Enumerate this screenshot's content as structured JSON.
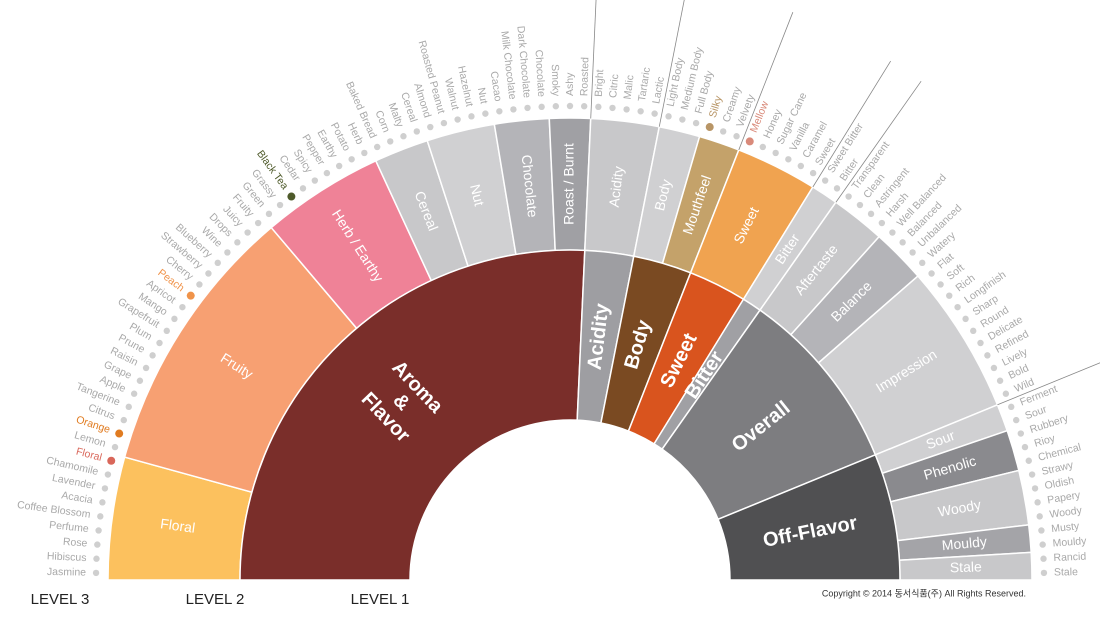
{
  "wheel": [
    {
      "label": "Aroma & Flavor",
      "color": "#7a2e2a",
      "children": [
        {
          "label": "Floral",
          "color": "#fcc15e",
          "children": [
            {
              "label": "Jasmine"
            },
            {
              "label": "Hibiscus"
            },
            {
              "label": "Rose"
            },
            {
              "label": "Perfume"
            },
            {
              "label": "Coffee Blossom"
            },
            {
              "label": "Acacia"
            },
            {
              "label": "Lavender"
            },
            {
              "label": "Chamomile"
            },
            {
              "label": "Floral",
              "color": "#d9675a"
            }
          ]
        },
        {
          "label": "Fruity",
          "color": "#f7a072",
          "children": [
            {
              "label": "Lemon"
            },
            {
              "label": "Orange",
              "color": "#e07b20"
            },
            {
              "label": "Citrus"
            },
            {
              "label": "Tangerine"
            },
            {
              "label": "Apple"
            },
            {
              "label": "Grape"
            },
            {
              "label": "Raisin"
            },
            {
              "label": "Prune"
            },
            {
              "label": "Plum"
            },
            {
              "label": "Grapefruit"
            },
            {
              "label": "Mango"
            },
            {
              "label": "Apricot"
            },
            {
              "label": "Peach",
              "color": "#f0934a"
            },
            {
              "label": "Cherry"
            },
            {
              "label": "Strawberry"
            },
            {
              "label": "Blueberry"
            },
            {
              "label": "Wine"
            },
            {
              "label": "Drops"
            },
            {
              "label": "Juicy"
            },
            {
              "label": "Fruity"
            }
          ]
        },
        {
          "label": "Herb / Earthy",
          "color": "#ef8297",
          "children": [
            {
              "label": "Green"
            },
            {
              "label": "Grassy"
            },
            {
              "label": "Black Tea",
              "color": "#4e5a2a"
            },
            {
              "label": "Cedar"
            },
            {
              "label": "Spicy"
            },
            {
              "label": "Pepper"
            },
            {
              "label": "Earthy"
            },
            {
              "label": "Potato"
            },
            {
              "label": "Herb"
            }
          ]
        },
        {
          "label": "Cereal",
          "color": "#c8c8ca",
          "children": [
            {
              "label": "Baked Bread"
            },
            {
              "label": "Corn"
            },
            {
              "label": "Malty"
            },
            {
              "label": "Cereal"
            }
          ]
        },
        {
          "label": "Nut",
          "color": "#d0d0d2",
          "children": [
            {
              "label": "Almond"
            },
            {
              "label": "Roasted Peanut"
            },
            {
              "label": "Walnut"
            },
            {
              "label": "Hazelnut"
            },
            {
              "label": "Nut"
            }
          ]
        },
        {
          "label": "Chocolate",
          "color": "#b4b4b8",
          "children": [
            {
              "label": "Cacao"
            },
            {
              "label": "Milk Chocolate"
            },
            {
              "label": "Dark Chocolate"
            },
            {
              "label": "Chocolate"
            }
          ]
        },
        {
          "label": "Roast / Burnt",
          "color": "#a0a0a4",
          "children": [
            {
              "label": "Smoky"
            },
            {
              "label": "Ashy"
            },
            {
              "label": "Roasted"
            }
          ]
        }
      ]
    },
    {
      "label": "Acidity",
      "color": "#9e9ea2",
      "children": [
        {
          "label": "Acidity",
          "color": "#c8c8ca",
          "children": [
            {
              "label": "Bright"
            },
            {
              "label": "Citric"
            },
            {
              "label": "Malic"
            },
            {
              "label": "Tartaric"
            },
            {
              "label": "Lactic"
            }
          ]
        }
      ]
    },
    {
      "label": "Body",
      "color": "#7a4a22",
      "children": [
        {
          "label": "Body",
          "color": "#d0d0d2",
          "children": [
            {
              "label": "Light Body"
            },
            {
              "label": "Medium Body"
            },
            {
              "label": "Full Body"
            }
          ]
        },
        {
          "label": "Mouthfeel",
          "color": "#c4a26a",
          "children": [
            {
              "label": "Silky",
              "color": "#b89566"
            },
            {
              "label": "Creamy"
            },
            {
              "label": "Velvety"
            }
          ]
        }
      ]
    },
    {
      "label": "Sweet",
      "color": "#d9541e",
      "children": [
        {
          "label": "Sweet",
          "color": "#f0a350",
          "children": [
            {
              "label": "Mellow",
              "color": "#d98a7a"
            },
            {
              "label": "Honey"
            },
            {
              "label": "Sugar Cane"
            },
            {
              "label": "Vanilla"
            },
            {
              "label": "Caramel"
            },
            {
              "label": "Sweet"
            }
          ]
        }
      ]
    },
    {
      "label": "Bitter",
      "color": "#a0a0a4",
      "children": [
        {
          "label": "Bitter",
          "color": "#d0d0d2",
          "children": [
            {
              "label": "Sweet Bitter"
            },
            {
              "label": "Bitter"
            }
          ]
        }
      ]
    },
    {
      "label": "Overall",
      "color": "#7d7d80",
      "children": [
        {
          "label": "Aftertaste",
          "color": "#c8c8ca",
          "children": [
            {
              "label": "Transparent"
            },
            {
              "label": "Clean"
            },
            {
              "label": "Astringent"
            },
            {
              "label": "Harsh"
            }
          ]
        },
        {
          "label": "Balance",
          "color": "#b4b4b8",
          "children": [
            {
              "label": "Well Balanced"
            },
            {
              "label": "Balanced"
            },
            {
              "label": "Unbalanced"
            },
            {
              "label": "Watery"
            }
          ]
        },
        {
          "label": "Impression",
          "color": "#d0d0d2",
          "children": [
            {
              "label": "Flat"
            },
            {
              "label": "Soft"
            },
            {
              "label": "Rich"
            },
            {
              "label": "Longfinish"
            },
            {
              "label": "Sharp"
            },
            {
              "label": "Round"
            },
            {
              "label": "Delicate"
            },
            {
              "label": "Refined"
            },
            {
              "label": "Lively"
            },
            {
              "label": "Bold"
            },
            {
              "label": "Wild"
            }
          ]
        }
      ]
    },
    {
      "label": "Off-Flavor",
      "color": "#505052",
      "children": [
        {
          "label": "Sour",
          "color": "#d0d0d2",
          "children": [
            {
              "label": "Ferment"
            },
            {
              "label": "Sour"
            }
          ]
        },
        {
          "label": "Phenolic",
          "color": "#8a8a8e",
          "children": [
            {
              "label": "Rubbery"
            },
            {
              "label": "Rioy"
            },
            {
              "label": "Chemical"
            }
          ]
        },
        {
          "label": "Woody",
          "color": "#c8c8ca",
          "children": [
            {
              "label": "Strawy"
            },
            {
              "label": "Oldish"
            },
            {
              "label": "Papery"
            },
            {
              "label": "Woody"
            }
          ]
        },
        {
          "label": "Mouldy",
          "color": "#a4a4a8",
          "children": [
            {
              "label": "Musty"
            },
            {
              "label": "Mouldy"
            }
          ]
        },
        {
          "label": "Stale",
          "color": "#c8c8ca",
          "children": [
            {
              "label": "Rancid"
            },
            {
              "label": "Stale"
            }
          ]
        }
      ]
    }
  ],
  "footer": {
    "levels": [
      "LEVEL 3",
      "LEVEL 2",
      "LEVEL 1"
    ],
    "copyright": "Copyright © 2014 동서식품(주) All Rights Reserved."
  }
}
